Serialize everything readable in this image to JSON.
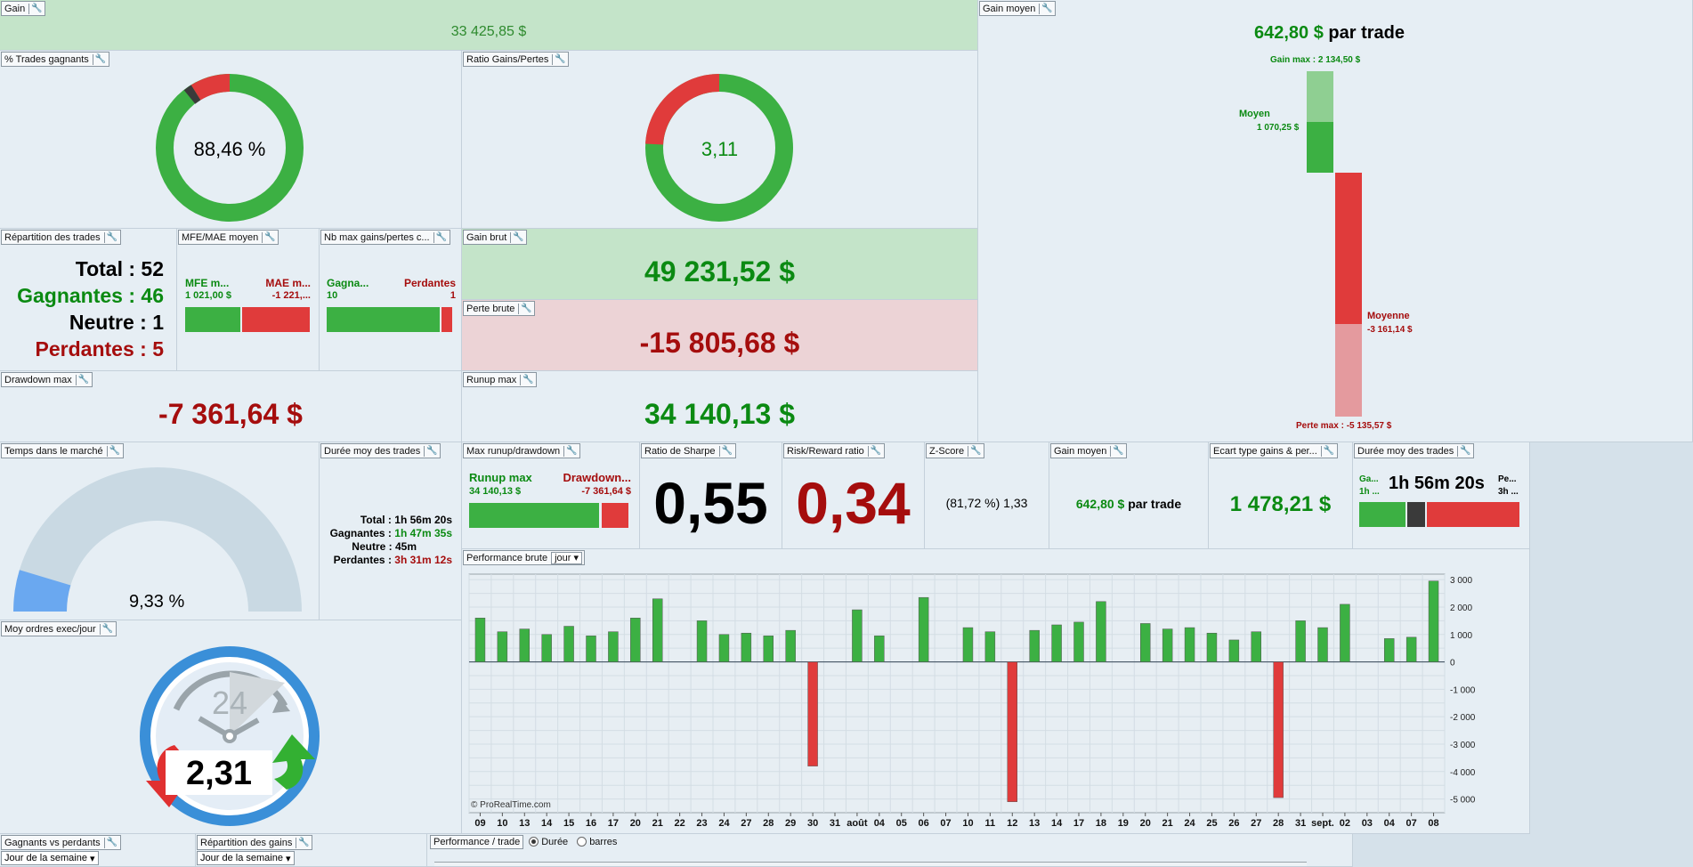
{
  "gain": {
    "title": "Gain",
    "value": "33 425,85 $"
  },
  "gain_moyen_big": {
    "title": "Gain moyen",
    "value": "642,80 $",
    "unit": "par trade",
    "gain_max": "Gain max : 2 134,50 $",
    "moyen_label": "Moyen",
    "moyen_value": "1 070,25 $",
    "moyenne_label": "Moyenne",
    "moyenne_value": "-3 161,14 $",
    "perte_max": "Perte max : -5 135,57 $"
  },
  "trades_gagnants": {
    "title": "% Trades gagnants",
    "value": "88,46 %"
  },
  "ratio_gains_pertes": {
    "title": "Ratio Gains/Pertes",
    "value": "3,11"
  },
  "repartition": {
    "title": "Répartition des trades",
    "total": "Total : 52",
    "gagnantes": "Gagnantes : 46",
    "neutre": "Neutre : 1",
    "perdantes": "Perdantes : 5"
  },
  "mfe_mae": {
    "title": "MFE/MAE moyen",
    "mfe_label": "MFE m...",
    "mfe_value": "1 021,00 $",
    "mae_label": "MAE m...",
    "mae_value": "-1 221,..."
  },
  "nb_max": {
    "title": "Nb max gains/pertes c...",
    "gagn_label": "Gagna...",
    "gagn_value": "10",
    "perd_label": "Perdantes",
    "perd_value": "1"
  },
  "gain_brut": {
    "title": "Gain brut",
    "value": "49 231,52 $"
  },
  "perte_brute": {
    "title": "Perte brute",
    "value": "-15 805,68 $"
  },
  "drawdown_max": {
    "title": "Drawdown max",
    "value": "-7 361,64 $"
  },
  "runup_max": {
    "title": "Runup max",
    "value": "34 140,13 $"
  },
  "temps_marche": {
    "title": "Temps dans le marché",
    "value": "9,33 %",
    "fraction": 0.0933
  },
  "duree_moy": {
    "title": "Durée moy des trades",
    "total_label": "Total :",
    "total_value": "1h 56m 20s",
    "gagnantes_label": "Gagnantes :",
    "gagnantes_value": "1h 47m 35s",
    "neutre_label": "Neutre :",
    "neutre_value": "45m",
    "perdantes_label": "Perdantes :",
    "perdantes_value": "3h 31m 12s"
  },
  "max_runup_dd": {
    "title": "Max runup/drawdown",
    "runup_label": "Runup max",
    "runup_value": "34 140,13 $",
    "dd_label": "Drawdown...",
    "dd_value": "-7 361,64 $"
  },
  "sharpe": {
    "title": "Ratio de Sharpe",
    "value": "0,55"
  },
  "risk_reward": {
    "title": "Risk/Reward ratio",
    "value": "0,34"
  },
  "zscore": {
    "title": "Z-Score",
    "value": "(81,72 %) 1,33"
  },
  "gain_moyen_small": {
    "title": "Gain moyen",
    "value": "642,80 $",
    "unit": "par trade"
  },
  "ecart_type": {
    "title": "Ecart type gains & per...",
    "value": "1 478,21 $"
  },
  "duree_moy2": {
    "title": "Durée moy des trades",
    "value": "1h 56m 20s",
    "left_label": "Ga...",
    "left_value": "1h ...",
    "right_label": "Pe...",
    "right_value": "3h ..."
  },
  "moy_ordres": {
    "title": "Moy ordres exec/jour",
    "value": "2,31",
    "clock_label": "24"
  },
  "bottom": {
    "gagnants_title": "Gagnants vs perdants",
    "gagnants_dropdown": "Jour de la semaine",
    "repartition_title": "Répartition des gains",
    "repartition_dropdown": "Jour de la semaine",
    "perf_trade_title": "Performance / trade",
    "radio_duree": "Durée",
    "radio_barres": "barres"
  },
  "perf_brute": {
    "title": "Performance brute",
    "dropdown": "jour",
    "watermark": "© ProRealTime.com"
  },
  "chart_data": {
    "type": "bar",
    "categories": [
      "09",
      "10",
      "13",
      "14",
      "15",
      "16",
      "17",
      "20",
      "21",
      "22",
      "23",
      "24",
      "27",
      "28",
      "29",
      "30",
      "31",
      "août",
      "04",
      "05",
      "06",
      "07",
      "10",
      "11",
      "12",
      "13",
      "14",
      "17",
      "18",
      "19",
      "20",
      "21",
      "24",
      "25",
      "26",
      "27",
      "28",
      "31",
      "sept.",
      "02",
      "03",
      "04",
      "07",
      "08"
    ],
    "values": [
      1600,
      1100,
      1200,
      1000,
      1300,
      950,
      1100,
      1600,
      2300,
      0,
      1500,
      1000,
      1050,
      950,
      1150,
      -3800,
      0,
      1900,
      950,
      0,
      2350,
      0,
      1250,
      1100,
      -5100,
      1150,
      1350,
      1450,
      2200,
      0,
      1400,
      1200,
      1250,
      1050,
      800,
      1100,
      -4950,
      1500,
      1250,
      2100,
      0,
      850,
      900,
      2950
    ],
    "yticks": [
      "3 000",
      "2 000",
      "1 000",
      "0",
      "-1 000",
      "-2 000",
      "-3 000",
      "-4 000",
      "-5 000"
    ],
    "ylim": [
      -5500,
      3200
    ],
    "grid": true,
    "colors": {
      "positive": "#3cb043",
      "negative": "#e03b3b"
    }
  },
  "colors": {
    "green": "#3cb043",
    "red": "#e03b3b",
    "dark": "#3a3a3a",
    "gauge_blue": "#6aa8f0"
  }
}
